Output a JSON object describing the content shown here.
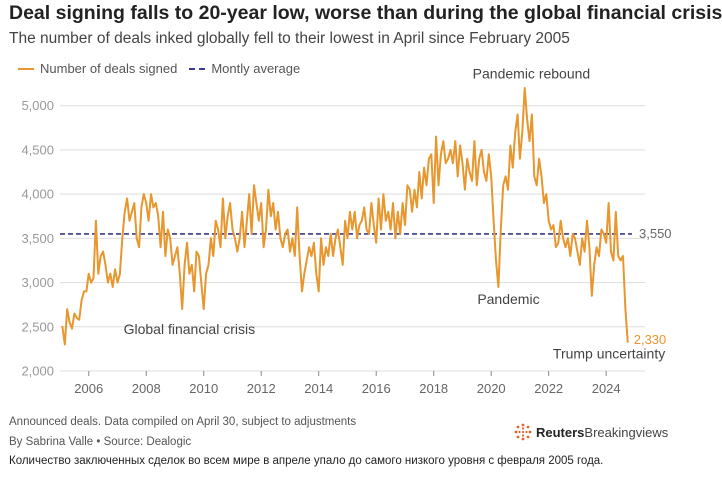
{
  "header": {
    "title": "Deal signing falls to 20-year low, worse than during the global financial crisis",
    "subtitle": "The number of deals inked globally fell to their lowest in April since February 2005"
  },
  "legend": {
    "series_label": "Number of deals signed",
    "average_label": "Montly average"
  },
  "footer": {
    "note": "Announced deals. Data compiled on April 30, subject to adjustments",
    "byline": "By Sabrina Valle • Source: Dealogic",
    "translation": "Количество заключенных сделок во всем мире в апреле упало до самого низкого уровня с февраля 2005 года.",
    "brand_bold": "Reuters",
    "brand_light": "Breakingviews"
  },
  "colors": {
    "series": "#E8962E",
    "average": "#3A3A8C",
    "grid": "#DDDDDD",
    "axis": "#888888"
  },
  "chart_data": {
    "type": "line",
    "title": "Deal signing falls to 20-year low, worse than during the global financial crisis",
    "subtitle": "The number of deals inked globally fell to their lowest in April since February 2005",
    "xlabel": "",
    "ylabel": "",
    "xlim": [
      2005.0,
      2025.35
    ],
    "ylim": [
      2000,
      5200
    ],
    "grid": true,
    "legend_position": "top-left",
    "x_ticks": [
      2006,
      2008,
      2010,
      2012,
      2014,
      2016,
      2018,
      2020,
      2022,
      2024
    ],
    "x_tick_labels": [
      "2006",
      "2008",
      "2010",
      "2012",
      "2014",
      "2016",
      "2018",
      "2020",
      "2022",
      "2024"
    ],
    "y_ticks": [
      2000,
      2500,
      3000,
      3500,
      4000,
      4500,
      5000
    ],
    "y_tick_labels": [
      "2,000",
      "2,500",
      "3,000",
      "3,500",
      "4,000",
      "4,500",
      "5,000"
    ],
    "average": {
      "name": "Montly average",
      "value": 3550,
      "label": "3,550"
    },
    "last_value_label": "2,330",
    "annotations": [
      {
        "text": "Global financial crisis",
        "x": 2009.5,
        "y": 2420
      },
      {
        "text": "Pandemic",
        "x": 2020.6,
        "y": 2760
      },
      {
        "text": "Pandemic rebound",
        "x": 2021.4,
        "y": 5310
      },
      {
        "text": "Trump uncertainty",
        "x": 2024.1,
        "y": 2140
      }
    ],
    "series": [
      {
        "name": "Number of deals signed",
        "x_start": 2005.083333,
        "x_step": 0.083333,
        "values": [
          2500,
          2300,
          2700,
          2550,
          2480,
          2650,
          2600,
          2580,
          2800,
          2900,
          2900,
          3100,
          3000,
          3050,
          3700,
          3100,
          3300,
          3350,
          3200,
          3000,
          3100,
          2950,
          3150,
          3000,
          3100,
          3500,
          3800,
          3950,
          3700,
          3800,
          3900,
          3500,
          3400,
          3850,
          4000,
          3900,
          3700,
          4000,
          3850,
          3900,
          3750,
          3400,
          3800,
          3300,
          3600,
          3500,
          3200,
          3300,
          3400,
          3100,
          2700,
          3200,
          3450,
          3100,
          3200,
          2900,
          3350,
          3300,
          3000,
          2700,
          3100,
          3200,
          3500,
          3300,
          3700,
          3600,
          3400,
          3950,
          3500,
          3750,
          3900,
          3600,
          3500,
          3350,
          3500,
          3800,
          3400,
          3700,
          4000,
          3550,
          4100,
          3900,
          3700,
          3900,
          3400,
          3600,
          4050,
          3750,
          3900,
          3600,
          3800,
          3500,
          3400,
          3550,
          3600,
          3350,
          3500,
          3300,
          3850,
          3300,
          2900,
          3100,
          3250,
          3400,
          3300,
          3450,
          3100,
          2900,
          3500,
          3200,
          3400,
          3300,
          3550,
          3300,
          3500,
          3600,
          3400,
          3200,
          3700,
          3500,
          3800,
          3600,
          3800,
          3500,
          3650,
          3700,
          3850,
          3600,
          3550,
          3900,
          3650,
          3450,
          3950,
          3600,
          4000,
          3700,
          3800,
          3600,
          3900,
          3500,
          3800,
          3550,
          3900,
          3650,
          4100,
          4050,
          3800,
          4050,
          3850,
          4250,
          3950,
          4300,
          4100,
          4400,
          4450,
          3900,
          4650,
          4100,
          4450,
          4600,
          4350,
          4400,
          4500,
          4350,
          4600,
          4200,
          4550,
          4350,
          4050,
          4400,
          4250,
          4150,
          4600,
          4100,
          4400,
          4500,
          4250,
          4150,
          4450,
          4200,
          3700,
          3250,
          2950,
          3600,
          4100,
          4200,
          4050,
          4550,
          4300,
          4700,
          4900,
          4400,
          4700,
          5200,
          4850,
          4600,
          4900,
          4200,
          4100,
          4400,
          4200,
          3900,
          4000,
          3700,
          3600,
          3650,
          3400,
          3450,
          3700,
          3500,
          3400,
          3500,
          3300,
          3550,
          3500,
          3350,
          3200,
          3500,
          3350,
          3700,
          3400,
          2850,
          3200,
          3400,
          3300,
          3600,
          3550,
          3450,
          3900,
          3350,
          3250,
          3800,
          3300,
          3250,
          3300,
          2700,
          2330
        ]
      }
    ]
  }
}
